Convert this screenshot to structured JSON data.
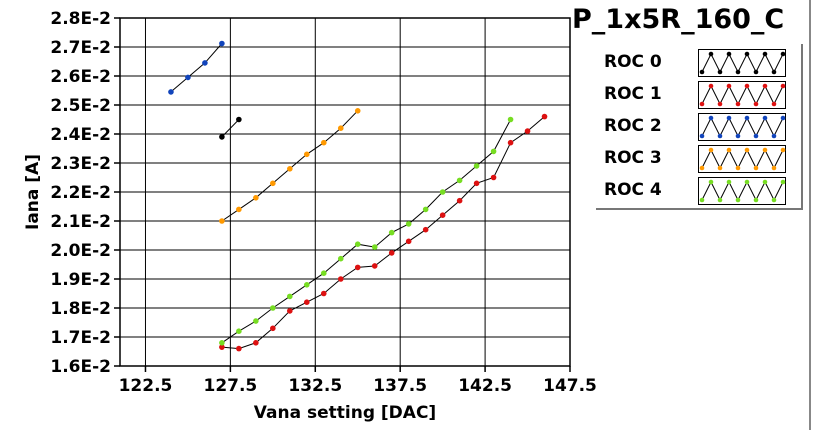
{
  "chart_data": {
    "type": "line",
    "title": "P_1x5R_160_C",
    "xlabel": "Vana setting [DAC]",
    "ylabel": "Iana [A]",
    "xlim": [
      121.0,
      147.5
    ],
    "ylim": [
      0.016,
      0.028
    ],
    "xticks": [
      122.5,
      127.5,
      132.5,
      137.5,
      142.5,
      147.5
    ],
    "xtick_labels": [
      "122.5",
      "127.5",
      "132.5",
      "137.5",
      "142.5",
      "147.5"
    ],
    "yticks": [
      0.016,
      0.017,
      0.018,
      0.019,
      0.02,
      0.021,
      0.022,
      0.023,
      0.024,
      0.025,
      0.026,
      0.027,
      0.028
    ],
    "ytick_labels": [
      "1.6E-2",
      "1.7E-2",
      "1.8E-2",
      "1.9E-2",
      "2.0E-2",
      "2.1E-2",
      "2.2E-2",
      "2.3E-2",
      "2.4E-2",
      "2.5E-2",
      "2.6E-2",
      "2.7E-2",
      "2.8E-2"
    ],
    "grid": true,
    "legend_position": "right",
    "series": [
      {
        "name": "ROC 0",
        "color": "#000000",
        "x": [
          127,
          128
        ],
        "y": [
          0.0239,
          0.0245
        ]
      },
      {
        "name": "ROC 1",
        "color": "#dd1111",
        "x": [
          127,
          128,
          129,
          130,
          131,
          132,
          133,
          134,
          135,
          136,
          137,
          138,
          139,
          140,
          141,
          142,
          143,
          144,
          145,
          146
        ],
        "y": [
          0.01665,
          0.0166,
          0.0168,
          0.0173,
          0.0179,
          0.0182,
          0.0185,
          0.019,
          0.0194,
          0.01945,
          0.0199,
          0.0203,
          0.0207,
          0.0212,
          0.0217,
          0.0223,
          0.0225,
          0.0237,
          0.0241,
          0.0246
        ]
      },
      {
        "name": "ROC 2",
        "color": "#1144bb",
        "x": [
          124,
          125,
          126,
          127
        ],
        "y": [
          0.02545,
          0.02595,
          0.02645,
          0.02712
        ]
      },
      {
        "name": "ROC 3",
        "color": "#ff9900",
        "x": [
          127,
          128,
          129,
          130,
          131,
          132,
          133,
          134,
          135
        ],
        "y": [
          0.021,
          0.0214,
          0.0218,
          0.0223,
          0.0228,
          0.0233,
          0.0237,
          0.0242,
          0.0248
        ]
      },
      {
        "name": "ROC 4",
        "color": "#77dd22",
        "x": [
          127,
          128,
          129,
          130,
          131,
          132,
          133,
          134,
          135,
          136,
          137,
          138,
          139,
          140,
          141,
          142,
          143,
          144
        ],
        "y": [
          0.0168,
          0.0172,
          0.01755,
          0.018,
          0.0184,
          0.0188,
          0.0192,
          0.0197,
          0.0202,
          0.0201,
          0.0206,
          0.0209,
          0.0214,
          0.022,
          0.0224,
          0.0229,
          0.0234,
          0.0245
        ]
      }
    ]
  }
}
